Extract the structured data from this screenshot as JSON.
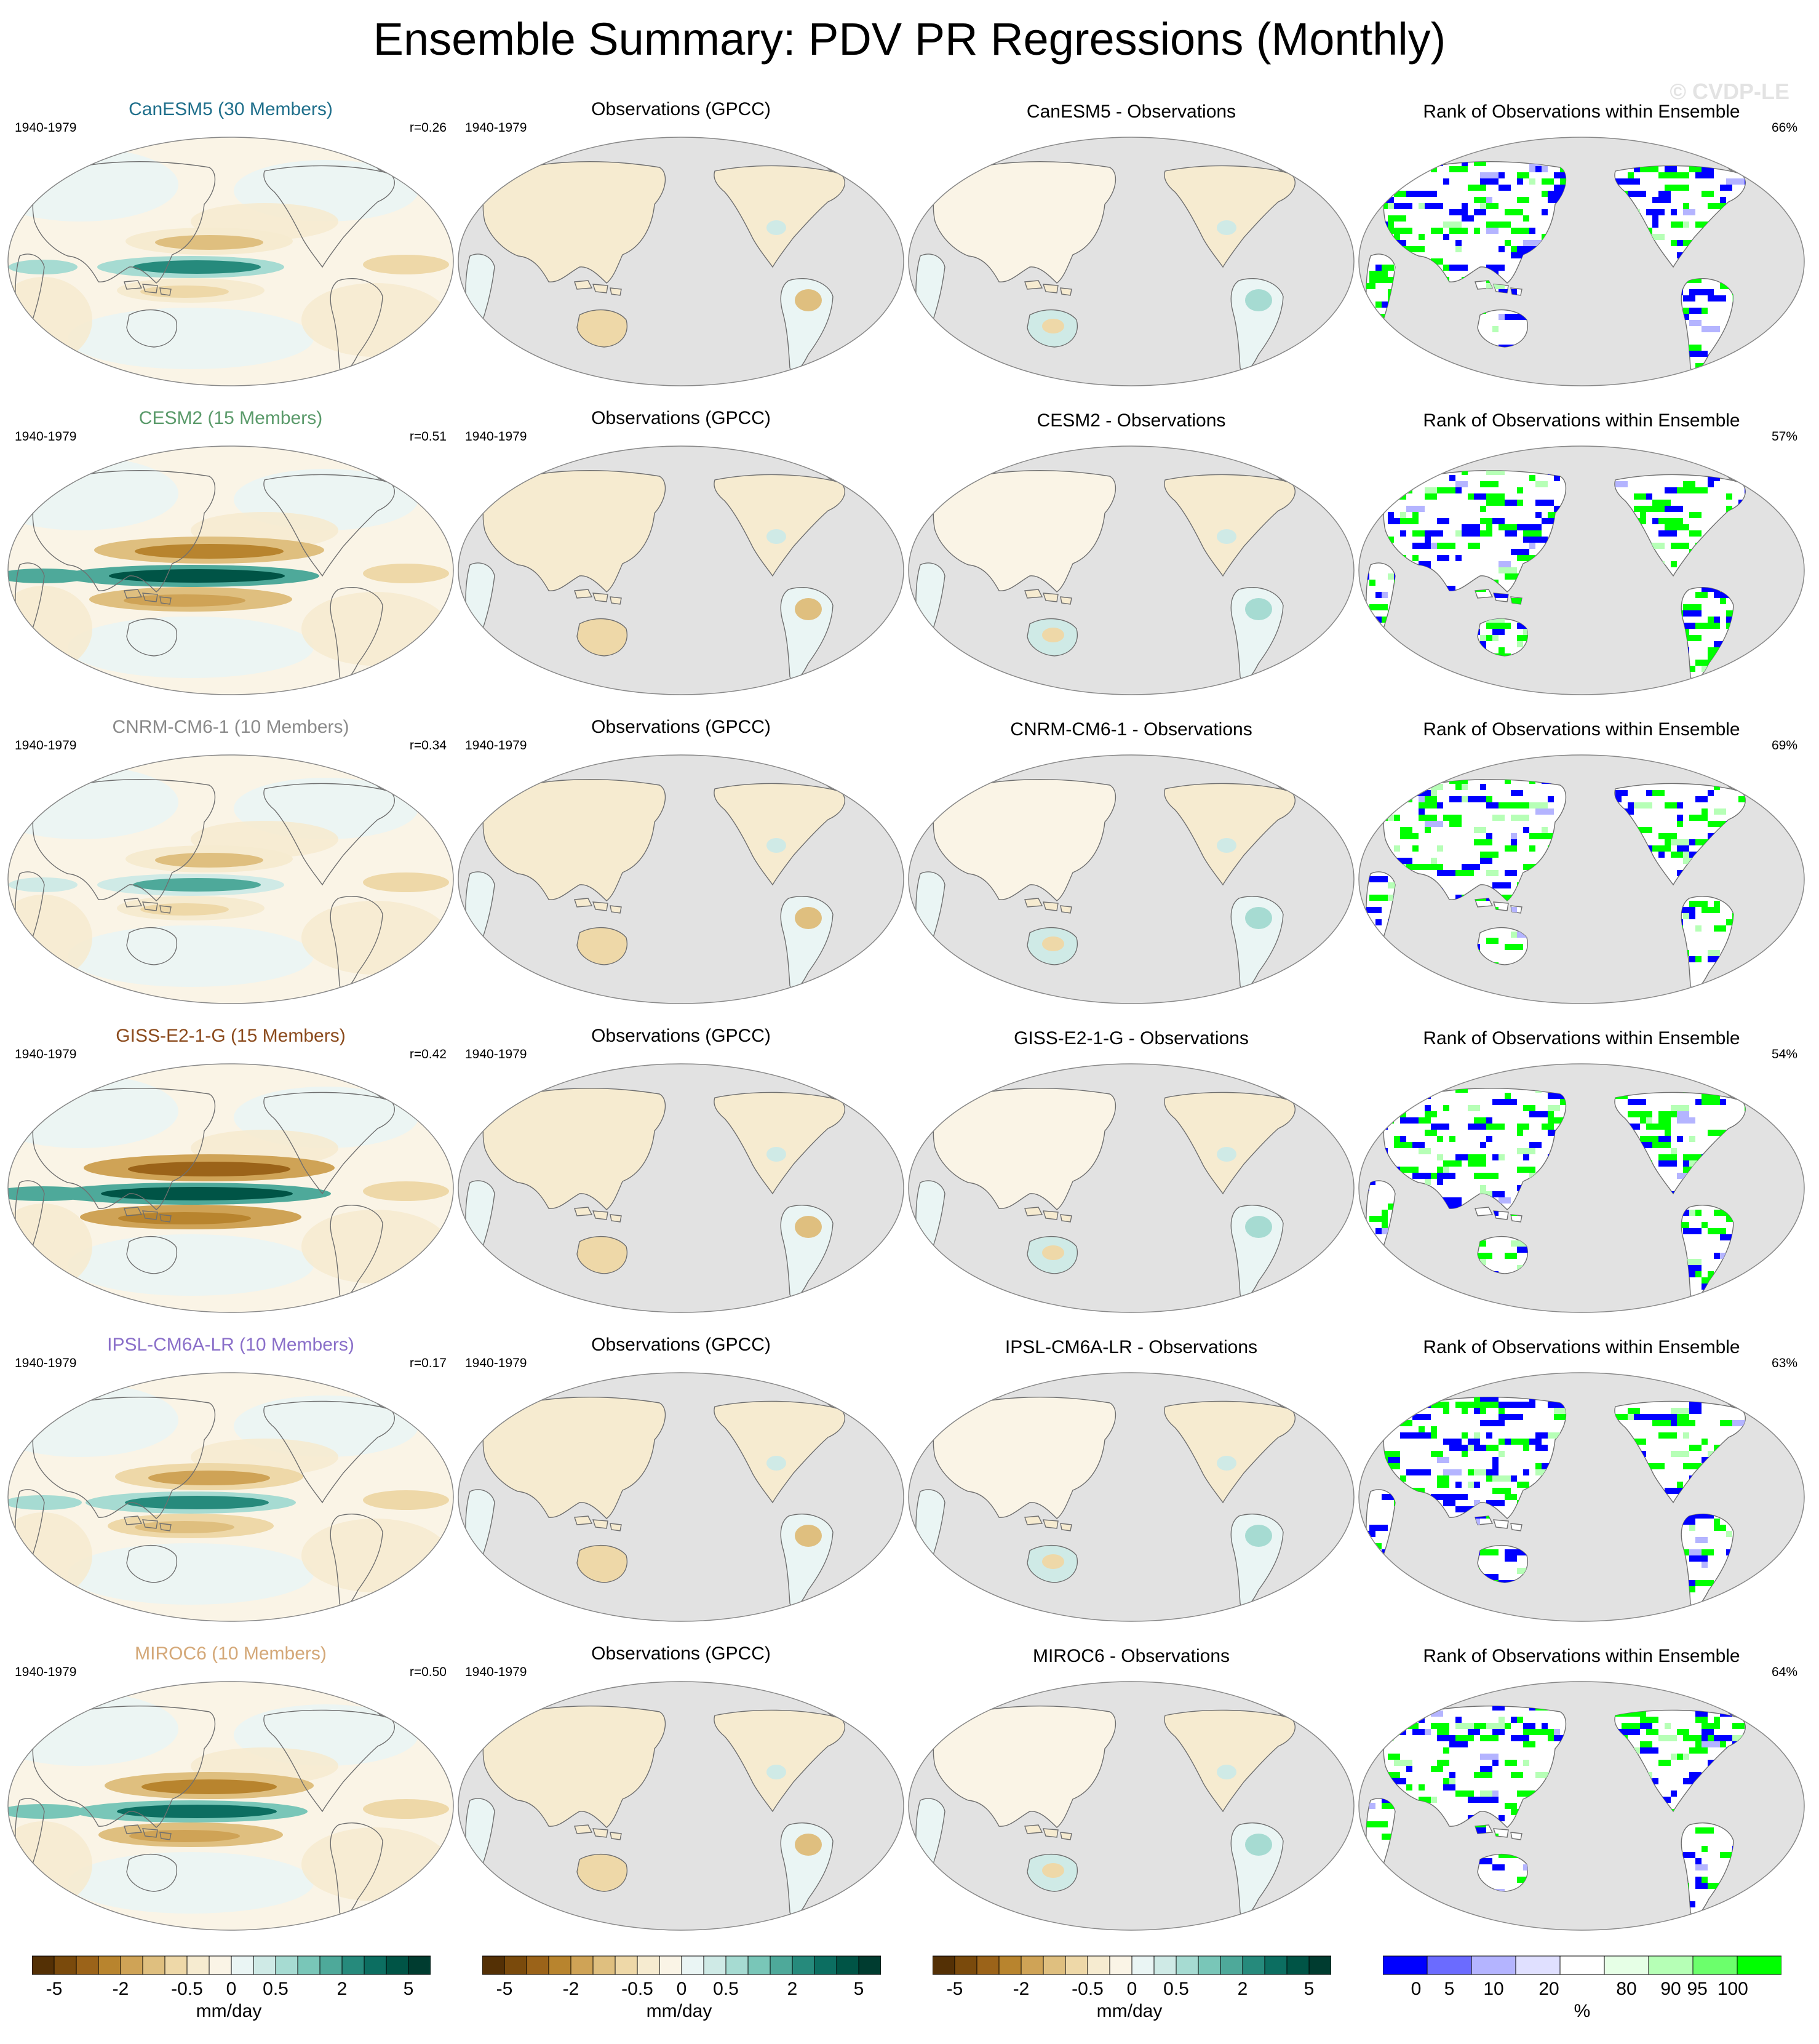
{
  "title": "Ensemble Summary: PDV PR Regressions (Monthly)",
  "watermark": "© CVDP-LE",
  "colors": {
    "brown_to_teal": [
      "#543005",
      "#7a4a0c",
      "#9b6319",
      "#b8842e",
      "#cfa356",
      "#dfbf7f",
      "#eed8a8",
      "#f6ebd0",
      "#faf4e6",
      "#eaf5f4",
      "#cfeae6",
      "#a6dbd2",
      "#79c6b8",
      "#4ea99a",
      "#268a7c",
      "#0c6e61",
      "#005446",
      "#003c30"
    ],
    "rank": [
      "#0000ff",
      "#6b6bff",
      "#b4b4ff",
      "#e0e0ff",
      "#ffffff",
      "#e6ffe6",
      "#b6ffb6",
      "#6cff6c",
      "#00ff00"
    ],
    "ocean_gray": "#e2e2e2",
    "model_title_colors": {
      "CanESM5": "#1f6f8b",
      "CESM2": "#5a9a6a",
      "CNRM-CM6-1": "#8a8a8a",
      "GISS-E2-1-G": "#8b4a1c",
      "IPSL-CM6A-LR": "#8a6fc9",
      "MIROC6": "#d4a878"
    }
  },
  "rows": [
    {
      "model_title": "CanESM5 (30 Members)",
      "model": "CanESM5",
      "period": "1940-1979",
      "r": "r=0.26",
      "obs_title": "Observations (GPCC)",
      "obs_period": "1940-1979",
      "diff_title": "CanESM5 - Observations",
      "rank_title": "Rank of Observations within Ensemble",
      "rank_pct": "66%"
    },
    {
      "model_title": "CESM2 (15 Members)",
      "model": "CESM2",
      "period": "1940-1979",
      "r": "r=0.51",
      "obs_title": "Observations (GPCC)",
      "obs_period": "1940-1979",
      "diff_title": "CESM2 - Observations",
      "rank_title": "Rank of Observations within Ensemble",
      "rank_pct": "57%"
    },
    {
      "model_title": "CNRM-CM6-1 (10 Members)",
      "model": "CNRM-CM6-1",
      "period": "1940-1979",
      "r": "r=0.34",
      "obs_title": "Observations (GPCC)",
      "obs_period": "1940-1979",
      "diff_title": "CNRM-CM6-1 - Observations",
      "rank_title": "Rank of Observations within Ensemble",
      "rank_pct": "69%"
    },
    {
      "model_title": "GISS-E2-1-G (15 Members)",
      "model": "GISS-E2-1-G",
      "period": "1940-1979",
      "r": "r=0.42",
      "obs_title": "Observations (GPCC)",
      "obs_period": "1940-1979",
      "diff_title": "GISS-E2-1-G - Observations",
      "rank_title": "Rank of Observations within Ensemble",
      "rank_pct": "54%"
    },
    {
      "model_title": "IPSL-CM6A-LR (10 Members)",
      "model": "IPSL-CM6A-LR",
      "period": "1940-1979",
      "r": "r=0.17",
      "obs_title": "Observations (GPCC)",
      "obs_period": "1940-1979",
      "diff_title": "IPSL-CM6A-LR - Observations",
      "rank_title": "Rank of Observations within Ensemble",
      "rank_pct": "63%"
    },
    {
      "model_title": "MIROC6 (10 Members)",
      "model": "MIROC6",
      "period": "1940-1979",
      "r": "r=0.50",
      "obs_title": "Observations (GPCC)",
      "obs_period": "1940-1979",
      "diff_title": "MIROC6 - Observations",
      "rank_title": "Rank of Observations within Ensemble",
      "rank_pct": "64%"
    }
  ],
  "colorbars": [
    {
      "unit": "mm/day",
      "ticks": [
        "-5",
        "-2",
        "-0.5",
        "0",
        "0.5",
        "2",
        "5"
      ]
    },
    {
      "unit": "mm/day",
      "ticks": [
        "-5",
        "-2",
        "-0.5",
        "0",
        "0.5",
        "2",
        "5"
      ]
    },
    {
      "unit": "mm/day",
      "ticks": [
        "-5",
        "-2",
        "-0.5",
        "0",
        "0.5",
        "2",
        "5"
      ]
    },
    {
      "unit": "%",
      "ticks": [
        "0",
        "5",
        "10",
        "20",
        "80",
        "90",
        "95",
        "100"
      ]
    }
  ],
  "chart_data": {
    "type": "heatmap",
    "title": "Ensemble Summary: PDV PR Regressions (Monthly)",
    "projection": "Robinson, Pacific-centered",
    "columns": [
      "Model ensemble mean",
      "Observations (GPCC)",
      "Model - Observations",
      "Rank of Observations within Ensemble"
    ],
    "pattern_correlation": {
      "CanESM5": 0.26,
      "CESM2": 0.51,
      "CNRM-CM6-1": 0.34,
      "GISS-E2-1-G": 0.42,
      "IPSL-CM6A-LR": 0.17,
      "MIROC6": 0.5
    },
    "rank_percent": {
      "CanESM5": 66,
      "CESM2": 57,
      "CNRM-CM6-1": 69,
      "GISS-E2-1-G": 54,
      "IPSL-CM6A-LR": 63,
      "MIROC6": 64
    },
    "contour_levels_mm_day": [
      -5,
      -4,
      -3,
      -2,
      -1.5,
      -1,
      -0.5,
      -0.25,
      0,
      0.25,
      0.5,
      1,
      1.5,
      2,
      3,
      4,
      5
    ],
    "rank_levels_percent": [
      0,
      5,
      10,
      20,
      80,
      90,
      95,
      100
    ]
  }
}
